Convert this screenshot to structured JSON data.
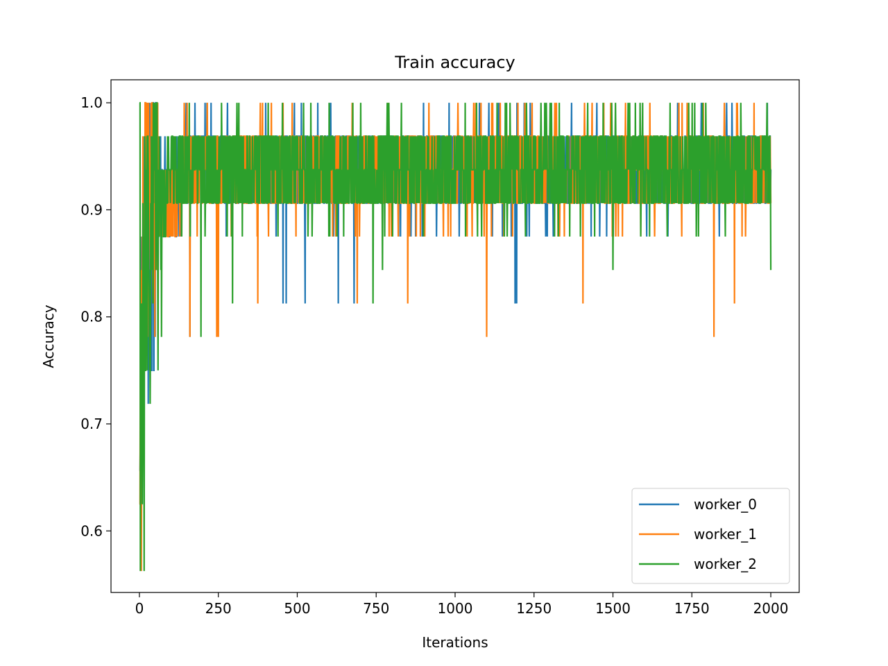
{
  "chart_data": {
    "type": "line",
    "title": "Train accuracy",
    "xlabel": "Iterations",
    "ylabel": "Accuracy",
    "xlim": [
      -90,
      2090
    ],
    "ylim": [
      0.5425,
      1.0215
    ],
    "xticks": [
      0,
      250,
      500,
      750,
      1000,
      1250,
      1500,
      1750,
      2000
    ],
    "xtick_labels": [
      "0",
      "250",
      "500",
      "750",
      "1000",
      "1250",
      "1500",
      "1750",
      "2000"
    ],
    "yticks": [
      0.6,
      0.7,
      0.8,
      0.9,
      1.0
    ],
    "ytick_labels": [
      "0.6",
      "0.7",
      "0.8",
      "0.9",
      "1.0"
    ],
    "grid": false,
    "legend_position": "lower-right",
    "iterations": 2000,
    "levels": [
      0.5625,
      0.59375,
      0.625,
      0.65625,
      0.6875,
      0.71875,
      0.75,
      0.78125,
      0.8125,
      0.84375,
      0.875,
      0.90625,
      0.9375,
      0.96875,
      1.0
    ],
    "series": [
      {
        "name": "worker_0",
        "color": "#1f77b4",
        "x": [
          0,
          3,
          6,
          10,
          15,
          20,
          30,
          40,
          50,
          60,
          80,
          100,
          150,
          200,
          250,
          300,
          400,
          500,
          600,
          700,
          800,
          900,
          1000,
          1100,
          1200,
          1300,
          1400,
          1500,
          1600,
          1700,
          1800,
          1900,
          2000
        ],
        "y": [
          0.65625,
          0.8125,
          0.6875,
          0.84375,
          0.875,
          0.90625,
          0.875,
          0.90625,
          0.90625,
          0.90625,
          0.90625,
          0.90625,
          0.9375,
          0.9375,
          0.9375,
          0.9375,
          0.9375,
          0.9375,
          0.9375,
          0.9375,
          0.9375,
          0.9375,
          0.9375,
          0.9375,
          0.9375,
          0.9375,
          0.9375,
          0.9375,
          0.9375,
          0.9375,
          0.9375,
          0.9375,
          0.9375
        ],
        "min_dips": [
          [
            38,
            0.75
          ],
          [
            45,
            0.75
          ],
          [
            160,
            0.78125
          ],
          [
            455,
            0.8125
          ],
          [
            465,
            0.8125
          ],
          [
            525,
            0.8125
          ],
          [
            630,
            0.8125
          ],
          [
            680,
            0.8125
          ],
          [
            1190,
            0.8125
          ],
          [
            1195,
            0.8125
          ]
        ]
      },
      {
        "name": "worker_1",
        "color": "#ff7f0e",
        "x": [
          0,
          3,
          6,
          10,
          15,
          20,
          30,
          40,
          50,
          60,
          80,
          100,
          150,
          200,
          250,
          300,
          400,
          500,
          600,
          700,
          800,
          900,
          1000,
          1100,
          1200,
          1300,
          1400,
          1500,
          1600,
          1700,
          1800,
          1900,
          2000
        ],
        "y": [
          0.625,
          0.78125,
          0.6875,
          0.8125,
          0.875,
          0.875,
          0.90625,
          0.90625,
          0.90625,
          0.90625,
          0.90625,
          0.90625,
          0.9375,
          0.9375,
          0.9375,
          0.9375,
          0.9375,
          0.9375,
          0.9375,
          0.9375,
          0.9375,
          0.9375,
          0.9375,
          0.9375,
          0.9375,
          0.9375,
          0.9375,
          0.9375,
          0.9375,
          0.9375,
          0.9375,
          0.9375,
          0.9375
        ],
        "min_dips": [
          [
            160,
            0.78125
          ],
          [
            245,
            0.78125
          ],
          [
            250,
            0.78125
          ],
          [
            375,
            0.8125
          ],
          [
            690,
            0.8125
          ],
          [
            850,
            0.8125
          ],
          [
            1100,
            0.78125
          ],
          [
            1405,
            0.8125
          ],
          [
            1820,
            0.78125
          ],
          [
            1885,
            0.8125
          ]
        ]
      },
      {
        "name": "worker_2",
        "color": "#2ca02c",
        "x": [
          0,
          3,
          6,
          10,
          15,
          20,
          30,
          40,
          50,
          60,
          80,
          100,
          150,
          200,
          250,
          300,
          400,
          500,
          600,
          700,
          800,
          900,
          1000,
          1100,
          1200,
          1300,
          1400,
          1500,
          1600,
          1700,
          1800,
          1900,
          2000
        ],
        "y": [
          1.0,
          0.5625,
          0.65625,
          0.75,
          0.84375,
          0.875,
          0.875,
          0.90625,
          0.90625,
          0.90625,
          0.90625,
          0.9375,
          0.9375,
          0.9375,
          0.9375,
          0.9375,
          0.9375,
          0.9375,
          0.9375,
          0.9375,
          0.9375,
          0.9375,
          0.9375,
          0.9375,
          0.9375,
          0.9375,
          0.9375,
          0.9375,
          0.9375,
          0.9375,
          0.9375,
          0.9375,
          0.9375
        ],
        "min_dips": [
          [
            3,
            0.5625
          ],
          [
            15,
            0.5625
          ],
          [
            70,
            0.78125
          ],
          [
            195,
            0.78125
          ],
          [
            295,
            0.8125
          ],
          [
            740,
            0.8125
          ],
          [
            770,
            0.84375
          ],
          [
            1500,
            0.84375
          ],
          [
            2000,
            0.84375
          ]
        ]
      }
    ]
  }
}
